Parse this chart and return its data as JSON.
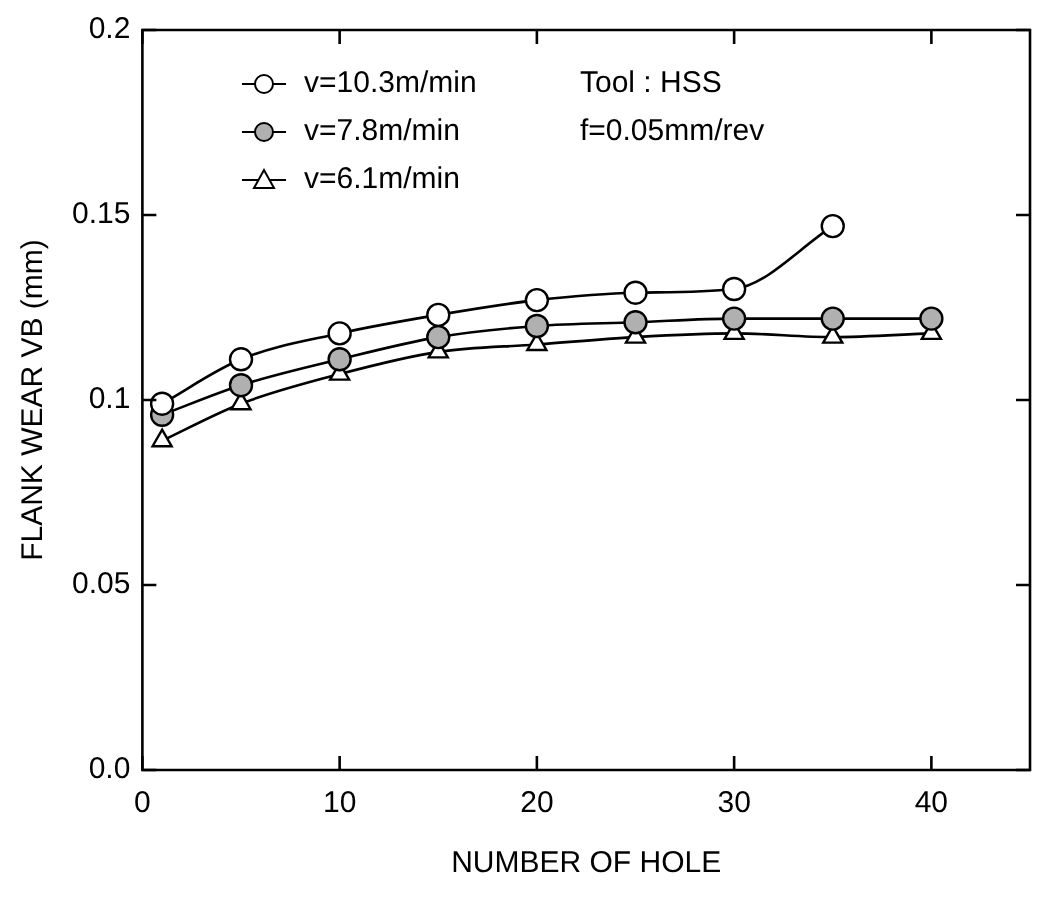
{
  "chart_data": {
    "type": "line",
    "xlabel": "NUMBER OF HOLE",
    "ylabel": "FLANK WEAR VB (mm)",
    "xlim": [
      0,
      45
    ],
    "xticks": [
      0,
      10,
      20,
      30,
      40
    ],
    "ylim": [
      0,
      0.2
    ],
    "yticks": [
      {
        "value": 0,
        "label": "0.0"
      },
      0.05,
      0.1,
      0.15,
      0.2
    ],
    "grid": false,
    "legend": "top left",
    "line_style": "solid",
    "annotations": [
      "Tool : HSS",
      "f=0.05mm/rev"
    ],
    "series": [
      {
        "name": "v=10.3m/min",
        "color": "#000000",
        "marker": "circle",
        "x": [
          1,
          5,
          10,
          15,
          20,
          25,
          30,
          35
        ],
        "values": [
          0.099,
          0.111,
          0.118,
          0.123,
          0.127,
          0.129,
          0.13,
          0.147
        ]
      },
      {
        "name": "v=7.8m/min",
        "color": "#000000",
        "marker": "circle",
        "x": [
          1,
          5,
          10,
          15,
          20,
          25,
          30,
          35,
          40
        ],
        "values": [
          0.096,
          0.104,
          0.111,
          0.117,
          0.12,
          0.121,
          0.122,
          0.122,
          0.122
        ]
      },
      {
        "name": "v=6.1m/min",
        "color": "#000000",
        "marker": "triangle",
        "x": [
          1,
          5,
          10,
          15,
          20,
          25,
          30,
          35,
          40
        ],
        "values": [
          0.089,
          0.099,
          0.107,
          0.113,
          0.115,
          0.117,
          0.118,
          0.117,
          0.118
        ]
      }
    ]
  }
}
